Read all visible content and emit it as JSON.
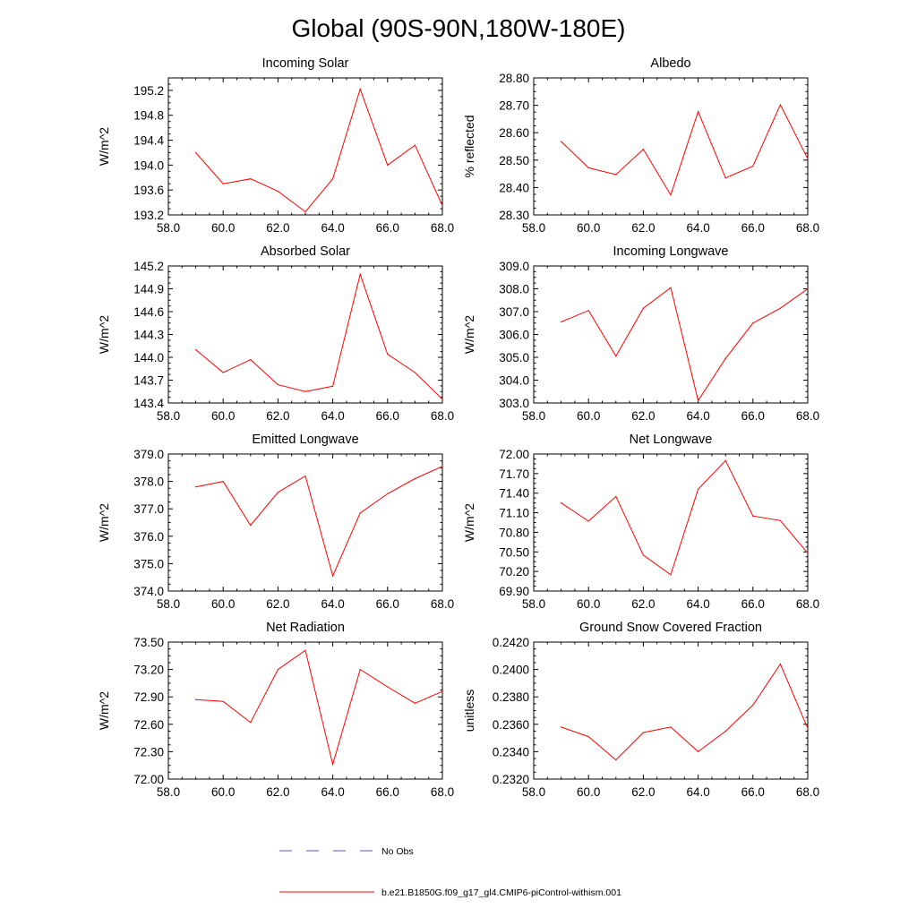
{
  "title": "Global (90S-90N,180W-180E)",
  "colors": {
    "model_line": "#ff0000",
    "obs_line": "#5555cc",
    "axis": "#000000"
  },
  "legend": {
    "obs_label": "No Obs",
    "model_label": "b.e21.B1850G.f09_g17_gl4.CMIP6-piControl-withism.001"
  },
  "chart_data": [
    {
      "type": "line",
      "title": "Incoming Solar",
      "xlabel": "",
      "ylabel": "W/m^2",
      "xlim": [
        58,
        68
      ],
      "ylim": [
        193.2,
        195.4
      ],
      "xticks": [
        "58.0",
        "60.0",
        "62.0",
        "64.0",
        "66.0",
        "68.0"
      ],
      "yticks": [
        "193.2",
        "193.6",
        "194.0",
        "194.4",
        "194.8",
        "195.2"
      ],
      "series": [
        {
          "name": "b.e21.B1850G.f09_g17_gl4.CMIP6-piControl-withism.001",
          "x": [
            59,
            60,
            61,
            62,
            63,
            64,
            65,
            66,
            67,
            68
          ],
          "values": [
            194.2,
            193.7,
            193.78,
            193.58,
            193.25,
            193.78,
            195.22,
            194.0,
            194.32,
            193.35
          ]
        }
      ]
    },
    {
      "type": "line",
      "title": "Albedo",
      "xlabel": "",
      "ylabel": "% reflected",
      "xlim": [
        58,
        68
      ],
      "ylim": [
        28.3,
        28.8
      ],
      "xticks": [
        "58.0",
        "60.0",
        "62.0",
        "64.0",
        "66.0",
        "68.0"
      ],
      "yticks": [
        "28.30",
        "28.40",
        "28.50",
        "28.60",
        "28.70",
        "28.80"
      ],
      "series": [
        {
          "name": "b.e21.B1850G.f09_g17_gl4.CMIP6-piControl-withism.001",
          "x": [
            59,
            60,
            61,
            62,
            63,
            64,
            65,
            66,
            67,
            68
          ],
          "values": [
            28.568,
            28.472,
            28.447,
            28.54,
            28.373,
            28.677,
            28.435,
            28.478,
            28.702,
            28.505
          ]
        }
      ]
    },
    {
      "type": "line",
      "title": "Absorbed Solar",
      "xlabel": "",
      "ylabel": "W/m^2",
      "xlim": [
        58,
        68
      ],
      "ylim": [
        143.4,
        145.2
      ],
      "xticks": [
        "58.0",
        "60.0",
        "62.0",
        "64.0",
        "66.0",
        "68.0"
      ],
      "yticks": [
        "143.4",
        "143.7",
        "144.0",
        "144.3",
        "144.6",
        "144.9",
        "145.2"
      ],
      "series": [
        {
          "name": "b.e21.B1850G.f09_g17_gl4.CMIP6-piControl-withism.001",
          "x": [
            59,
            60,
            61,
            62,
            63,
            64,
            65,
            66,
            67,
            68
          ],
          "values": [
            144.1,
            143.8,
            143.97,
            143.64,
            143.55,
            143.62,
            145.09,
            144.04,
            143.8,
            143.45
          ]
        }
      ]
    },
    {
      "type": "line",
      "title": "Incoming Longwave",
      "xlabel": "",
      "ylabel": "W/m^2",
      "xlim": [
        58,
        68
      ],
      "ylim": [
        303.0,
        309.0
      ],
      "xticks": [
        "58.0",
        "60.0",
        "62.0",
        "64.0",
        "66.0",
        "68.0"
      ],
      "yticks": [
        "303.0",
        "304.0",
        "305.0",
        "306.0",
        "307.0",
        "308.0",
        "309.0"
      ],
      "series": [
        {
          "name": "b.e21.B1850G.f09_g17_gl4.CMIP6-piControl-withism.001",
          "x": [
            59,
            60,
            61,
            62,
            63,
            64,
            65,
            66,
            67,
            68
          ],
          "values": [
            306.55,
            307.05,
            305.05,
            307.15,
            308.05,
            303.1,
            304.95,
            306.5,
            307.15,
            308.0
          ]
        }
      ]
    },
    {
      "type": "line",
      "title": "Emitted Longwave",
      "xlabel": "",
      "ylabel": "W/m^2",
      "xlim": [
        58,
        68
      ],
      "ylim": [
        374.0,
        379.0
      ],
      "xticks": [
        "58.0",
        "60.0",
        "62.0",
        "64.0",
        "66.0",
        "68.0"
      ],
      "yticks": [
        "374.0",
        "375.0",
        "376.0",
        "377.0",
        "378.0",
        "379.0"
      ],
      "series": [
        {
          "name": "b.e21.B1850G.f09_g17_gl4.CMIP6-piControl-withism.001",
          "x": [
            59,
            60,
            61,
            62,
            63,
            64,
            65,
            66,
            67,
            68
          ],
          "values": [
            377.8,
            378.0,
            376.4,
            377.6,
            378.2,
            374.55,
            376.85,
            377.55,
            378.1,
            378.55
          ]
        }
      ]
    },
    {
      "type": "line",
      "title": "Net Longwave",
      "xlabel": "",
      "ylabel": "W/m^2",
      "xlim": [
        58,
        68
      ],
      "ylim": [
        69.9,
        72.0
      ],
      "xticks": [
        "58.0",
        "60.0",
        "62.0",
        "64.0",
        "66.0",
        "68.0"
      ],
      "yticks": [
        "69.90",
        "70.20",
        "70.50",
        "70.80",
        "71.10",
        "71.40",
        "71.70",
        "72.00"
      ],
      "series": [
        {
          "name": "b.e21.B1850G.f09_g17_gl4.CMIP6-piControl-withism.001",
          "x": [
            59,
            60,
            61,
            62,
            63,
            64,
            65,
            66,
            67,
            68
          ],
          "values": [
            71.25,
            70.97,
            71.35,
            70.45,
            70.15,
            71.46,
            71.9,
            71.05,
            70.98,
            70.48
          ]
        }
      ]
    },
    {
      "type": "line",
      "title": "Net Radiation",
      "xlabel": "",
      "ylabel": "W/m^2",
      "xlim": [
        58,
        68
      ],
      "ylim": [
        72.0,
        73.5
      ],
      "xticks": [
        "58.0",
        "60.0",
        "62.0",
        "64.0",
        "66.0",
        "68.0"
      ],
      "yticks": [
        "72.00",
        "72.30",
        "72.60",
        "72.90",
        "73.20",
        "73.50"
      ],
      "series": [
        {
          "name": "b.e21.B1850G.f09_g17_gl4.CMIP6-piControl-withism.001",
          "x": [
            59,
            60,
            61,
            62,
            63,
            64,
            65,
            66,
            67,
            68
          ],
          "values": [
            72.87,
            72.85,
            72.62,
            73.2,
            73.41,
            72.16,
            73.2,
            73.01,
            72.83,
            72.96
          ]
        }
      ]
    },
    {
      "type": "line",
      "title": "Ground Snow Covered Fraction",
      "xlabel": "",
      "ylabel": "unitless",
      "xlim": [
        58,
        68
      ],
      "ylim": [
        0.232,
        0.242
      ],
      "xticks": [
        "58.0",
        "60.0",
        "62.0",
        "64.0",
        "66.0",
        "68.0"
      ],
      "yticks": [
        "0.2320",
        "0.2340",
        "0.2360",
        "0.2380",
        "0.2400",
        "0.2420"
      ],
      "series": [
        {
          "name": "b.e21.B1850G.f09_g17_gl4.CMIP6-piControl-withism.001",
          "x": [
            59,
            60,
            61,
            62,
            63,
            64,
            65,
            66,
            67,
            68
          ],
          "values": [
            0.2358,
            0.2351,
            0.2334,
            0.2354,
            0.2358,
            0.234,
            0.2355,
            0.2374,
            0.2404,
            0.2357
          ]
        }
      ]
    }
  ]
}
